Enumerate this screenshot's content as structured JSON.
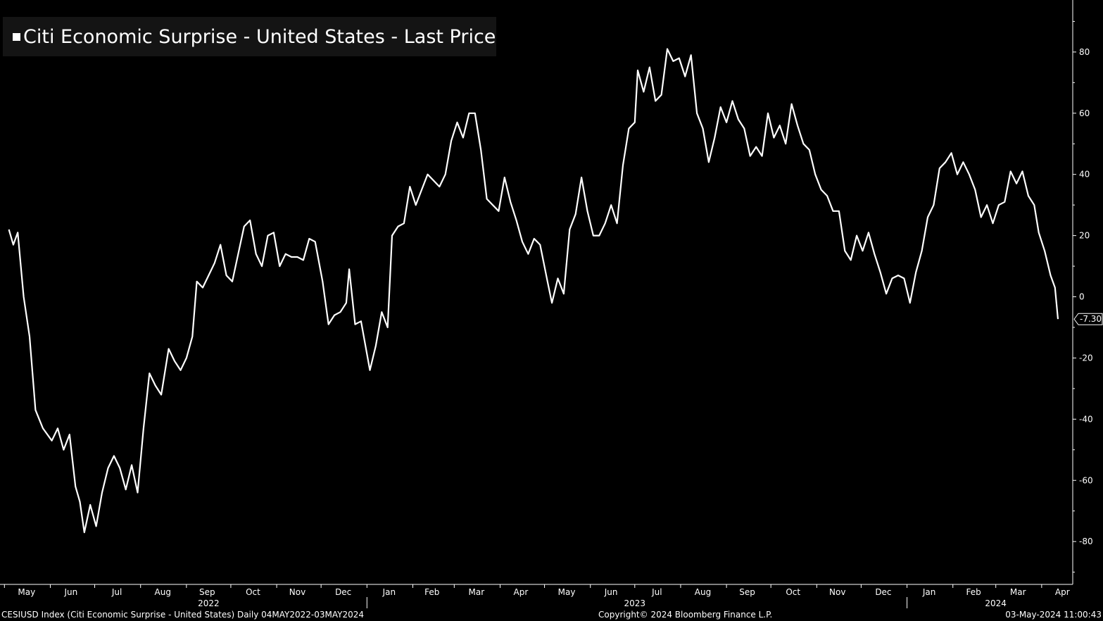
{
  "chart_data": {
    "type": "line",
    "title": "Citi Economic Surprise - United States - Last Price",
    "series": [
      {
        "name": "Citi Economic Surprise - United States - Last Price",
        "color": "#ffffff",
        "points": [
          [
            "2022-05-04",
            22
          ],
          [
            "2022-05-07",
            17
          ],
          [
            "2022-05-10",
            21
          ],
          [
            "2022-05-14",
            0
          ],
          [
            "2022-05-18",
            -13
          ],
          [
            "2022-05-22",
            -37
          ],
          [
            "2022-05-27",
            -43
          ],
          [
            "2022-06-02",
            -47
          ],
          [
            "2022-06-06",
            -43
          ],
          [
            "2022-06-10",
            -50
          ],
          [
            "2022-06-14",
            -45
          ],
          [
            "2022-06-18",
            -62
          ],
          [
            "2022-06-21",
            -67
          ],
          [
            "2022-06-24",
            -77
          ],
          [
            "2022-06-28",
            -68
          ],
          [
            "2022-07-02",
            -75
          ],
          [
            "2022-07-06",
            -64
          ],
          [
            "2022-07-10",
            -56
          ],
          [
            "2022-07-14",
            -52
          ],
          [
            "2022-07-18",
            -56
          ],
          [
            "2022-07-22",
            -63
          ],
          [
            "2022-07-26",
            -55
          ],
          [
            "2022-07-30",
            -64
          ],
          [
            "2022-08-03",
            -43
          ],
          [
            "2022-08-07",
            -25
          ],
          [
            "2022-08-11",
            -29
          ],
          [
            "2022-08-15",
            -32
          ],
          [
            "2022-08-20",
            -17
          ],
          [
            "2022-08-24",
            -21
          ],
          [
            "2022-08-28",
            -24
          ],
          [
            "2022-09-01",
            -20
          ],
          [
            "2022-09-05",
            -13
          ],
          [
            "2022-09-08",
            5
          ],
          [
            "2022-09-12",
            3
          ],
          [
            "2022-09-16",
            7
          ],
          [
            "2022-09-20",
            11
          ],
          [
            "2022-09-24",
            17
          ],
          [
            "2022-09-28",
            7
          ],
          [
            "2022-10-02",
            5
          ],
          [
            "2022-10-06",
            14
          ],
          [
            "2022-10-10",
            23
          ],
          [
            "2022-10-14",
            25
          ],
          [
            "2022-10-18",
            14
          ],
          [
            "2022-10-22",
            10
          ],
          [
            "2022-10-26",
            20
          ],
          [
            "2022-10-30",
            21
          ],
          [
            "2022-11-03",
            10
          ],
          [
            "2022-11-07",
            14
          ],
          [
            "2022-11-11",
            13
          ],
          [
            "2022-11-15",
            13
          ],
          [
            "2022-11-19",
            12
          ],
          [
            "2022-11-23",
            19
          ],
          [
            "2022-11-27",
            18
          ],
          [
            "2022-12-02",
            5
          ],
          [
            "2022-12-06",
            -9
          ],
          [
            "2022-12-10",
            -6
          ],
          [
            "2022-12-14",
            -5
          ],
          [
            "2022-12-18",
            -2
          ],
          [
            "2022-12-20",
            9
          ],
          [
            "2022-12-24",
            -9
          ],
          [
            "2022-12-28",
            -8
          ],
          [
            "2023-01-03",
            -24
          ],
          [
            "2023-01-07",
            -16
          ],
          [
            "2023-01-11",
            -5
          ],
          [
            "2023-01-15",
            -10
          ],
          [
            "2023-01-18",
            20
          ],
          [
            "2023-01-22",
            23
          ],
          [
            "2023-01-26",
            24
          ],
          [
            "2023-01-30",
            36
          ],
          [
            "2023-02-03",
            30
          ],
          [
            "2023-02-07",
            35
          ],
          [
            "2023-02-11",
            40
          ],
          [
            "2023-02-15",
            38
          ],
          [
            "2023-02-19",
            36
          ],
          [
            "2023-02-23",
            40
          ],
          [
            "2023-02-27",
            51
          ],
          [
            "2023-03-03",
            57
          ],
          [
            "2023-03-07",
            52
          ],
          [
            "2023-03-11",
            60
          ],
          [
            "2023-03-15",
            60
          ],
          [
            "2023-03-19",
            48
          ],
          [
            "2023-03-23",
            32
          ],
          [
            "2023-03-27",
            30
          ],
          [
            "2023-03-31",
            28
          ],
          [
            "2023-04-04",
            39
          ],
          [
            "2023-04-08",
            31
          ],
          [
            "2023-04-12",
            25
          ],
          [
            "2023-04-16",
            18
          ],
          [
            "2023-04-20",
            14
          ],
          [
            "2023-04-24",
            19
          ],
          [
            "2023-04-28",
            17
          ],
          [
            "2023-05-03",
            5
          ],
          [
            "2023-05-06",
            -2
          ],
          [
            "2023-05-10",
            6
          ],
          [
            "2023-05-14",
            1
          ],
          [
            "2023-05-18",
            22
          ],
          [
            "2023-05-22",
            27
          ],
          [
            "2023-05-26",
            39
          ],
          [
            "2023-05-30",
            28
          ],
          [
            "2023-06-03",
            20
          ],
          [
            "2023-06-07",
            20
          ],
          [
            "2023-06-11",
            24
          ],
          [
            "2023-06-15",
            30
          ],
          [
            "2023-06-19",
            24
          ],
          [
            "2023-06-23",
            43
          ],
          [
            "2023-06-27",
            55
          ],
          [
            "2023-07-01",
            57
          ],
          [
            "2023-07-03",
            74
          ],
          [
            "2023-07-07",
            67
          ],
          [
            "2023-07-11",
            75
          ],
          [
            "2023-07-15",
            64
          ],
          [
            "2023-07-19",
            66
          ],
          [
            "2023-07-23",
            81
          ],
          [
            "2023-07-27",
            77
          ],
          [
            "2023-07-31",
            78
          ],
          [
            "2023-08-04",
            72
          ],
          [
            "2023-08-08",
            79
          ],
          [
            "2023-08-12",
            60
          ],
          [
            "2023-08-16",
            55
          ],
          [
            "2023-08-20",
            44
          ],
          [
            "2023-08-24",
            52
          ],
          [
            "2023-08-28",
            62
          ],
          [
            "2023-09-01",
            57
          ],
          [
            "2023-09-05",
            64
          ],
          [
            "2023-09-09",
            58
          ],
          [
            "2023-09-13",
            55
          ],
          [
            "2023-09-17",
            46
          ],
          [
            "2023-09-21",
            49
          ],
          [
            "2023-09-25",
            46
          ],
          [
            "2023-09-29",
            60
          ],
          [
            "2023-10-03",
            52
          ],
          [
            "2023-10-07",
            56
          ],
          [
            "2023-10-11",
            50
          ],
          [
            "2023-10-15",
            63
          ],
          [
            "2023-10-19",
            56
          ],
          [
            "2023-10-23",
            50
          ],
          [
            "2023-10-27",
            48
          ],
          [
            "2023-10-31",
            40
          ],
          [
            "2023-11-04",
            35
          ],
          [
            "2023-11-08",
            33
          ],
          [
            "2023-11-12",
            28
          ],
          [
            "2023-11-16",
            28
          ],
          [
            "2023-11-20",
            15
          ],
          [
            "2023-11-24",
            12
          ],
          [
            "2023-11-28",
            20
          ],
          [
            "2023-12-02",
            15
          ],
          [
            "2023-12-06",
            21
          ],
          [
            "2023-12-10",
            14
          ],
          [
            "2023-12-14",
            8
          ],
          [
            "2023-12-18",
            1
          ],
          [
            "2023-12-22",
            6
          ],
          [
            "2023-12-26",
            7
          ],
          [
            "2023-12-30",
            6
          ],
          [
            "2024-01-03",
            -2
          ],
          [
            "2024-01-07",
            8
          ],
          [
            "2024-01-11",
            15
          ],
          [
            "2024-01-15",
            26
          ],
          [
            "2024-01-19",
            30
          ],
          [
            "2024-01-23",
            42
          ],
          [
            "2024-01-27",
            44
          ],
          [
            "2024-01-31",
            47
          ],
          [
            "2024-02-04",
            40
          ],
          [
            "2024-02-08",
            44
          ],
          [
            "2024-02-12",
            40
          ],
          [
            "2024-02-16",
            35
          ],
          [
            "2024-02-20",
            26
          ],
          [
            "2024-02-24",
            30
          ],
          [
            "2024-02-28",
            24
          ],
          [
            "2024-03-03",
            30
          ],
          [
            "2024-03-07",
            31
          ],
          [
            "2024-03-11",
            41
          ],
          [
            "2024-03-15",
            37
          ],
          [
            "2024-03-19",
            41
          ],
          [
            "2024-03-23",
            33
          ],
          [
            "2024-03-27",
            30
          ],
          [
            "2024-03-30",
            21
          ],
          [
            "2024-04-03",
            15
          ],
          [
            "2024-04-07",
            7
          ],
          [
            "2024-04-10",
            3
          ],
          [
            "2024-04-12",
            -7.3
          ]
        ]
      }
    ],
    "last_value_label": "-7.30",
    "yaxis": {
      "side": "right",
      "ticks": [
        80,
        60,
        40,
        20,
        0,
        -20,
        -40,
        -60,
        -80
      ],
      "ylim": [
        -94,
        97
      ]
    },
    "xaxis": {
      "type": "date",
      "xlim": [
        "2022-04-28",
        "2024-04-22"
      ],
      "month_labels": [
        {
          "label": "May",
          "date": "2022-05-16"
        },
        {
          "label": "Jun",
          "date": "2022-06-15"
        },
        {
          "label": "Jul",
          "date": "2022-07-16"
        },
        {
          "label": "Aug",
          "date": "2022-08-16"
        },
        {
          "label": "Sep",
          "date": "2022-09-15"
        },
        {
          "label": "Oct",
          "date": "2022-10-16"
        },
        {
          "label": "Nov",
          "date": "2022-11-15"
        },
        {
          "label": "Dec",
          "date": "2022-12-16"
        },
        {
          "label": "Jan",
          "date": "2023-01-16"
        },
        {
          "label": "Feb",
          "date": "2023-02-14"
        },
        {
          "label": "Mar",
          "date": "2023-03-16"
        },
        {
          "label": "Apr",
          "date": "2023-04-15"
        },
        {
          "label": "May",
          "date": "2023-05-16"
        },
        {
          "label": "Jun",
          "date": "2023-06-15"
        },
        {
          "label": "Jul",
          "date": "2023-07-16"
        },
        {
          "label": "Aug",
          "date": "2023-08-16"
        },
        {
          "label": "Sep",
          "date": "2023-09-15"
        },
        {
          "label": "Oct",
          "date": "2023-10-16"
        },
        {
          "label": "Nov",
          "date": "2023-11-15"
        },
        {
          "label": "Dec",
          "date": "2023-12-16"
        },
        {
          "label": "Jan",
          "date": "2024-01-16"
        },
        {
          "label": "Feb",
          "date": "2024-02-15"
        },
        {
          "label": "Mar",
          "date": "2024-03-16"
        },
        {
          "label": "Apr",
          "date": "2024-04-15"
        }
      ],
      "year_labels": [
        {
          "label": "2022",
          "date": "2022-09-16"
        },
        {
          "label": "2023",
          "date": "2023-07-01"
        },
        {
          "label": "2024",
          "date": "2024-03-01"
        }
      ],
      "year_boundaries": [
        "2023-01-01",
        "2024-01-01"
      ]
    },
    "grid": false,
    "legend": "top-left"
  },
  "footer": {
    "left": "CESIUSD Index (Citi Economic Surprise - United States)  Daily 04MAY2022-03MAY2024",
    "center": "Copyright© 2024 Bloomberg Finance L.P.",
    "right": "03-May-2024 11:00:43"
  }
}
